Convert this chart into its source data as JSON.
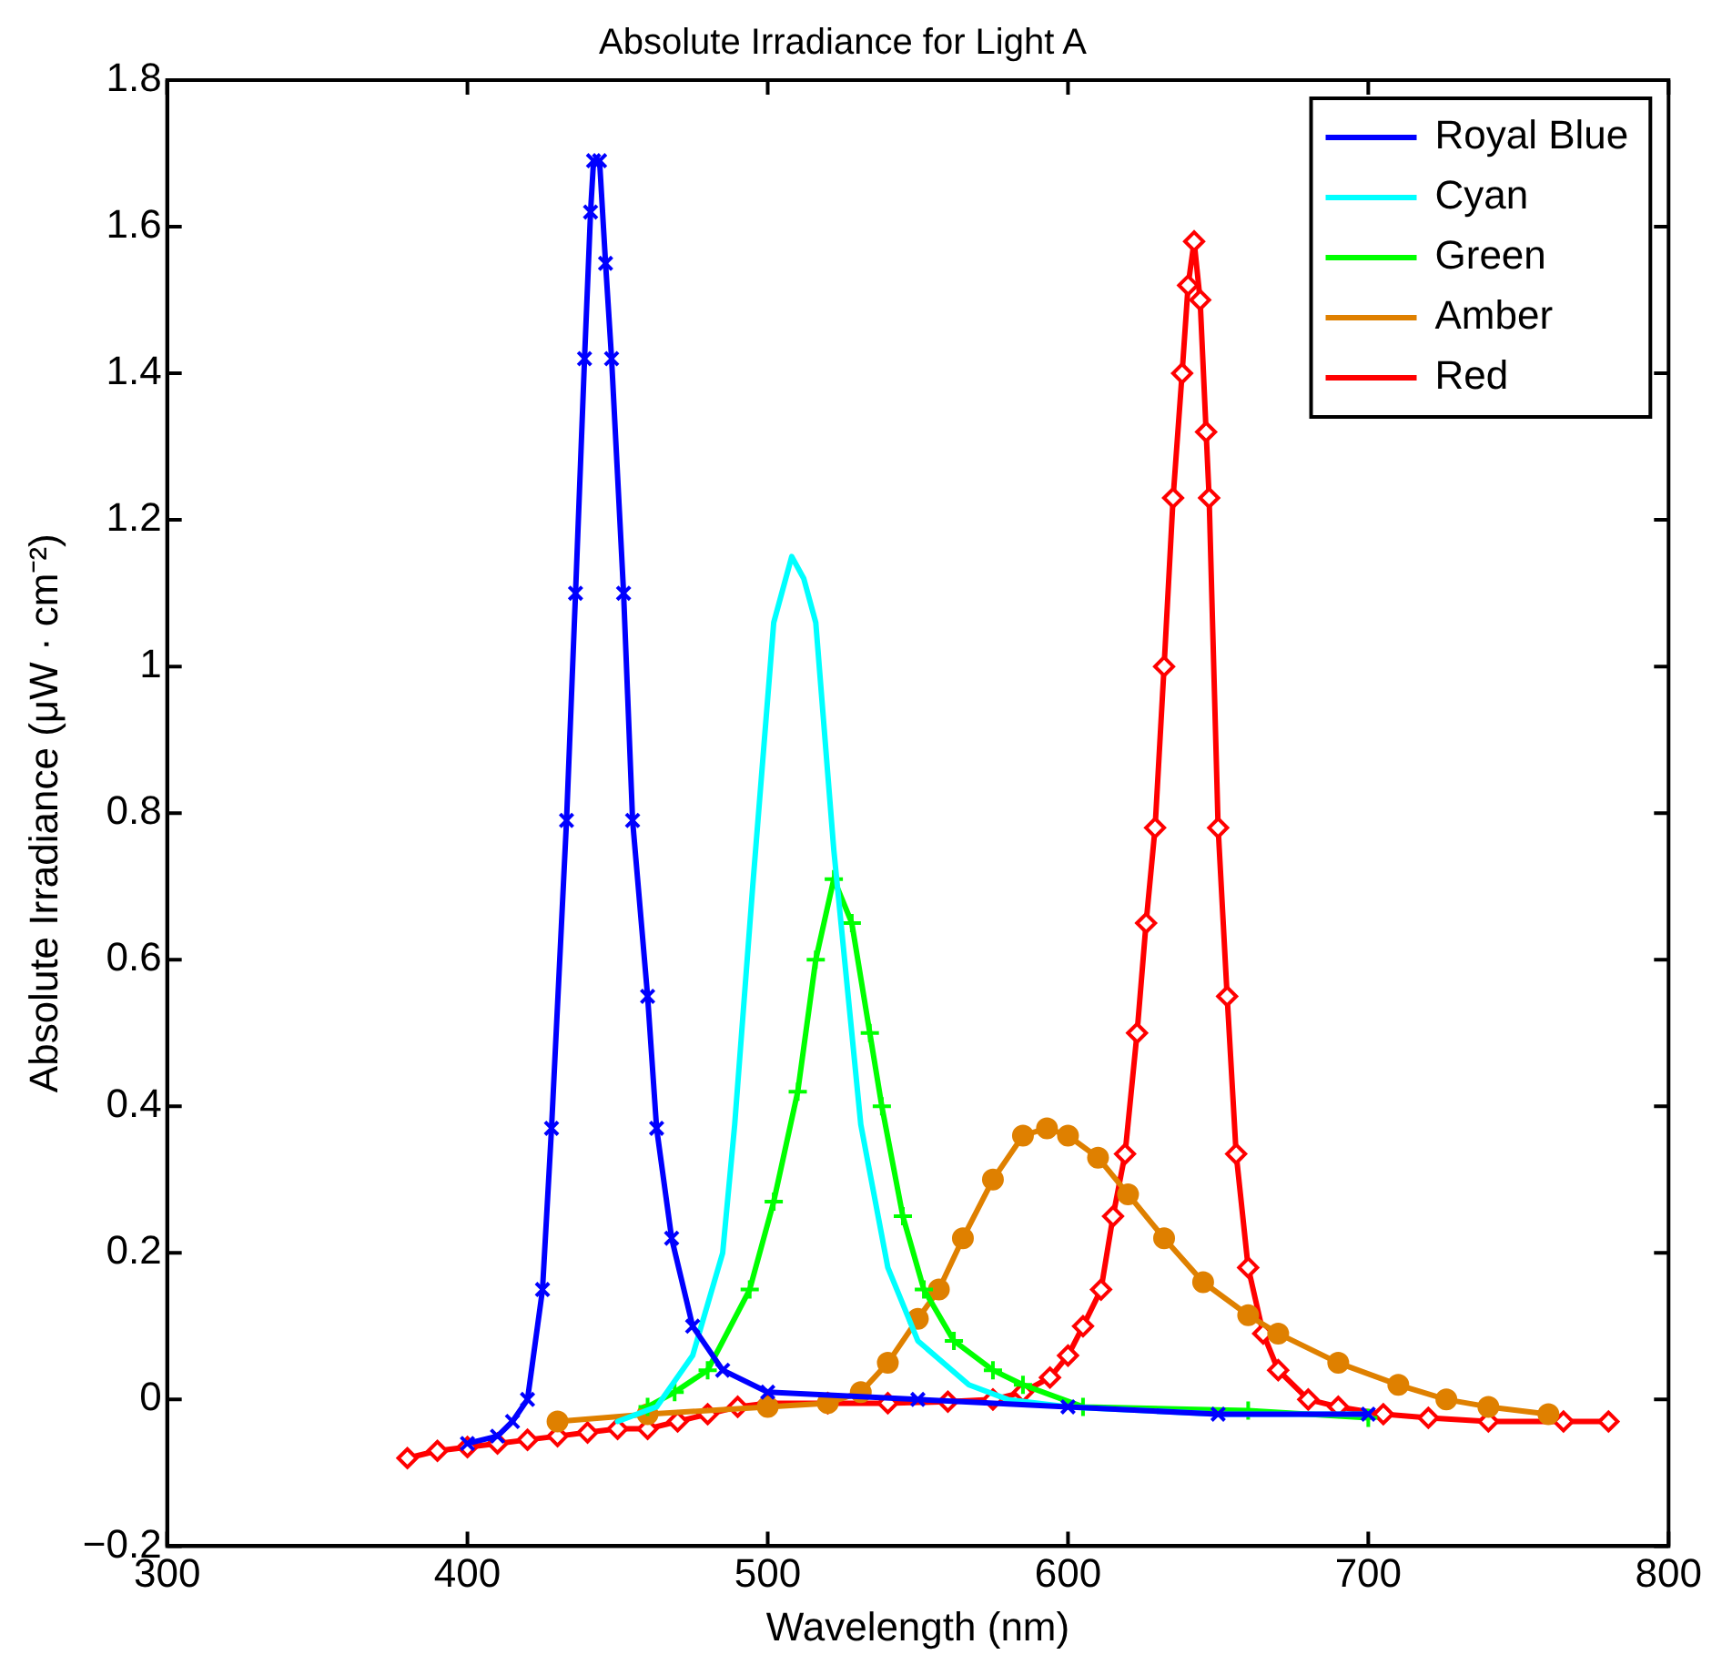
{
  "chart_data": {
    "type": "line",
    "title": "Absolute Irradiance for Light A",
    "xlabel": "Wavelength (nm)",
    "ylabel": "Absolute Irradiance (μW · cm⁻²)",
    "xlim": [
      300,
      800
    ],
    "xticks": [
      300,
      400,
      500,
      600,
      700,
      800
    ],
    "ylim": [
      -0.2,
      1.8
    ],
    "yticks": [
      {
        "value": -0.2,
        "label": "−0.2"
      },
      0,
      0.2,
      0.4,
      0.6,
      0.8,
      1,
      1.2,
      1.4,
      1.6,
      1.8
    ],
    "grid": false,
    "legend": "top right",
    "line_style": "solid",
    "series": [
      {
        "name": "Royal Blue",
        "color": "#0000ff",
        "marker": "cross",
        "x": [
          400,
          410,
          415,
          420,
          425,
          428,
          433,
          436,
          439,
          441,
          442,
          444,
          446,
          448,
          452,
          455,
          460,
          463,
          468,
          475,
          485,
          500,
          550,
          600,
          650,
          700
        ],
        "values": [
          -0.06,
          -0.05,
          -0.03,
          0.0,
          0.15,
          0.37,
          0.79,
          1.1,
          1.42,
          1.62,
          1.69,
          1.69,
          1.55,
          1.42,
          1.1,
          0.79,
          0.55,
          0.37,
          0.22,
          0.1,
          0.04,
          0.01,
          0.0,
          -0.01,
          -0.02,
          -0.02
        ]
      },
      {
        "name": "Cyan",
        "color": "#00ffff",
        "marker": "none",
        "x": [
          450,
          463,
          475,
          485,
          489,
          495,
          502,
          508,
          512,
          516,
          522,
          531,
          540,
          550,
          567,
          580,
          600,
          650,
          700
        ],
        "values": [
          -0.03,
          -0.01,
          0.06,
          0.2,
          0.375,
          0.7,
          1.06,
          1.15,
          1.12,
          1.06,
          0.75,
          0.375,
          0.18,
          0.08,
          0.02,
          0.0,
          -0.01,
          -0.02,
          -0.02
        ]
      },
      {
        "name": "Green",
        "color": "#00ff00",
        "marker": "plus",
        "x": [
          460,
          469,
          480,
          494,
          502,
          510,
          516,
          522,
          528,
          534,
          538,
          545,
          552,
          562,
          575,
          585,
          605,
          660,
          700
        ],
        "values": [
          -0.01,
          0.01,
          0.04,
          0.15,
          0.27,
          0.42,
          0.6,
          0.71,
          0.65,
          0.5,
          0.4,
          0.25,
          0.15,
          0.08,
          0.04,
          0.02,
          -0.01,
          -0.015,
          -0.025
        ]
      },
      {
        "name": "Amber",
        "color": "#df8000",
        "marker": "circle",
        "x": [
          430,
          460,
          500,
          520,
          531,
          540,
          550,
          557,
          565,
          575,
          585,
          593,
          600,
          610,
          620,
          632,
          645,
          660,
          670,
          690,
          710,
          726,
          740,
          760
        ],
        "values": [
          -0.03,
          -0.02,
          -0.01,
          -0.005,
          0.01,
          0.05,
          0.11,
          0.15,
          0.22,
          0.3,
          0.36,
          0.37,
          0.36,
          0.33,
          0.28,
          0.22,
          0.16,
          0.115,
          0.09,
          0.05,
          0.02,
          0.0,
          -0.01,
          -0.02
        ]
      },
      {
        "name": "Red",
        "color": "#ff0000",
        "marker": "diamond",
        "x": [
          380,
          390,
          400,
          410,
          420,
          430,
          440,
          450,
          460,
          470,
          480,
          490,
          500,
          520,
          540,
          560,
          575,
          585,
          594,
          600,
          605,
          611,
          615,
          619,
          623,
          626,
          629,
          632,
          635,
          638,
          640,
          642,
          644,
          646,
          647,
          650,
          653,
          656,
          660,
          665,
          670,
          680,
          690,
          705,
          720,
          740,
          765,
          780
        ],
        "values": [
          -0.08,
          -0.07,
          -0.065,
          -0.06,
          -0.055,
          -0.05,
          -0.045,
          -0.04,
          -0.04,
          -0.03,
          -0.02,
          -0.01,
          -0.005,
          -0.005,
          -0.005,
          -0.003,
          0.0,
          0.01,
          0.03,
          0.06,
          0.1,
          0.15,
          0.25,
          0.335,
          0.5,
          0.65,
          0.78,
          1.0,
          1.23,
          1.4,
          1.52,
          1.58,
          1.5,
          1.32,
          1.23,
          0.78,
          0.55,
          0.335,
          0.18,
          0.09,
          0.04,
          0.0,
          -0.01,
          -0.02,
          -0.025,
          -0.03,
          -0.03,
          -0.03
        ]
      }
    ]
  }
}
